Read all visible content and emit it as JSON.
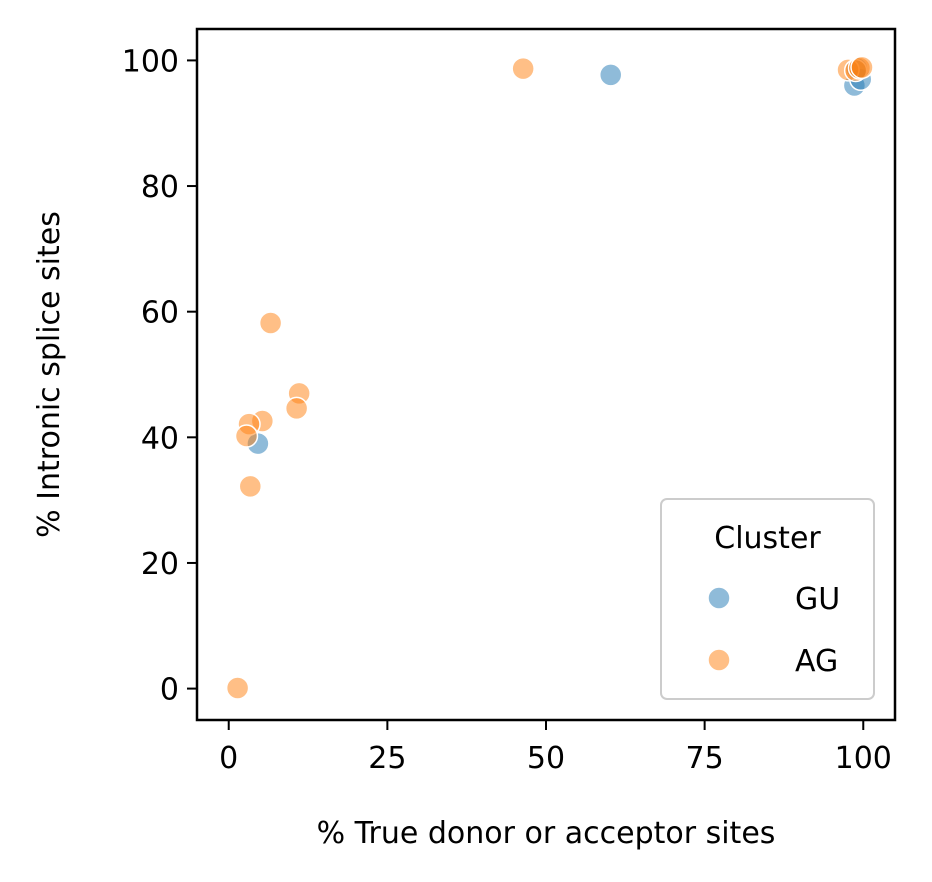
{
  "chart_data": {
    "type": "scatter",
    "title": "",
    "xlabel": "% True donor or acceptor sites",
    "ylabel": "% Intronic splice sites",
    "xlim": [
      -5,
      105
    ],
    "ylim": [
      -5,
      105
    ],
    "xticks": [
      0,
      25,
      50,
      75,
      100
    ],
    "yticks": [
      0,
      20,
      40,
      60,
      80,
      100
    ],
    "grid": false,
    "legend": {
      "title": "Cluster",
      "placement": "bottom-right",
      "entries": [
        "GU",
        "AG"
      ]
    },
    "series": [
      {
        "name": "GU",
        "color": "#1f77b4",
        "points": [
          {
            "x": 60.2,
            "y": 97.7
          },
          {
            "x": 98.6,
            "y": 96.0
          },
          {
            "x": 99.6,
            "y": 97.0
          },
          {
            "x": 99.0,
            "y": 98.7
          },
          {
            "x": 4.6,
            "y": 39.0
          }
        ]
      },
      {
        "name": "AG",
        "color": "#ff7f0e",
        "points": [
          {
            "x": 46.4,
            "y": 98.7
          },
          {
            "x": 97.6,
            "y": 98.5
          },
          {
            "x": 98.8,
            "y": 98.4
          },
          {
            "x": 99.4,
            "y": 98.8
          },
          {
            "x": 99.8,
            "y": 98.9
          },
          {
            "x": 6.6,
            "y": 58.2
          },
          {
            "x": 11.1,
            "y": 47.0
          },
          {
            "x": 10.7,
            "y": 44.6
          },
          {
            "x": 5.3,
            "y": 42.6
          },
          {
            "x": 3.2,
            "y": 42.1
          },
          {
            "x": 2.8,
            "y": 40.2
          },
          {
            "x": 3.4,
            "y": 32.2
          },
          {
            "x": 1.4,
            "y": 0.1
          }
        ]
      }
    ]
  }
}
